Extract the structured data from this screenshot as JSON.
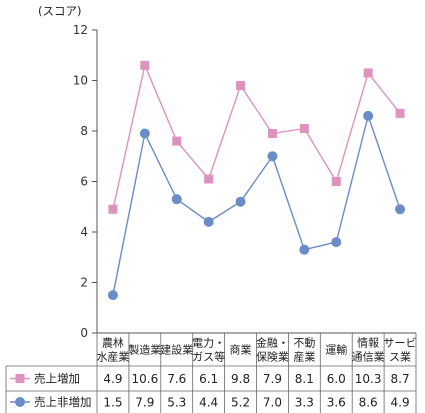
{
  "chart_data": {
    "type": "line",
    "ylabel": "(スコア)",
    "ylim": [
      0,
      12
    ],
    "yticks": [
      0,
      2,
      4,
      6,
      8,
      10,
      12
    ],
    "grid": false,
    "categories": [
      [
        "農林",
        "水産業"
      ],
      [
        "製造業"
      ],
      [
        "建設業"
      ],
      [
        "電力・",
        "ガス等"
      ],
      [
        "商業"
      ],
      [
        "金融・",
        "保険業"
      ],
      [
        "不動",
        "産業"
      ],
      [
        "運輸"
      ],
      [
        "情報",
        "通信業"
      ],
      [
        "サービ",
        "ス業"
      ]
    ],
    "series": [
      {
        "name": "売上増加",
        "color": "#dd93be",
        "marker": "square",
        "values": [
          4.9,
          10.6,
          7.6,
          6.1,
          9.8,
          7.9,
          8.1,
          6.0,
          10.3,
          8.7
        ],
        "labels": [
          "4.9",
          "10.6",
          "7.6",
          "6.1",
          "9.8",
          "7.9",
          "8.1",
          "6.0",
          "10.3",
          "8.7"
        ]
      },
      {
        "name": "売上非増加",
        "color": "#6a8cc7",
        "marker": "circle",
        "values": [
          1.5,
          7.9,
          5.3,
          4.4,
          5.2,
          7.0,
          3.3,
          3.6,
          8.6,
          4.9
        ],
        "labels": [
          "1.5",
          "7.9",
          "5.3",
          "4.4",
          "5.2",
          "7.0",
          "3.3",
          "3.6",
          "8.6",
          "4.9"
        ]
      }
    ]
  }
}
